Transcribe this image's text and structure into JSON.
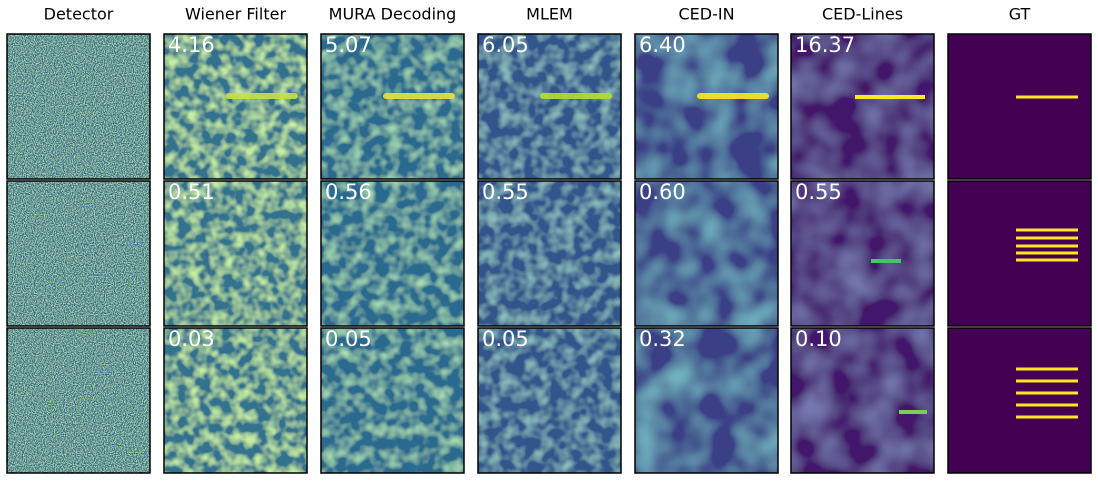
{
  "columns": [
    "Detector",
    "Wiener Filter",
    "MURA Decoding",
    "MLEM",
    "CED-IN",
    "CED-Lines",
    "GT"
  ],
  "scores": [
    [
      "4.16",
      "5.07",
      "6.05",
      "6.40",
      "16.37"
    ],
    [
      "0.51",
      "0.56",
      "0.55",
      "0.60",
      "0.55"
    ],
    [
      "0.03",
      "0.05",
      "0.05",
      "0.32",
      "0.10"
    ]
  ]
}
